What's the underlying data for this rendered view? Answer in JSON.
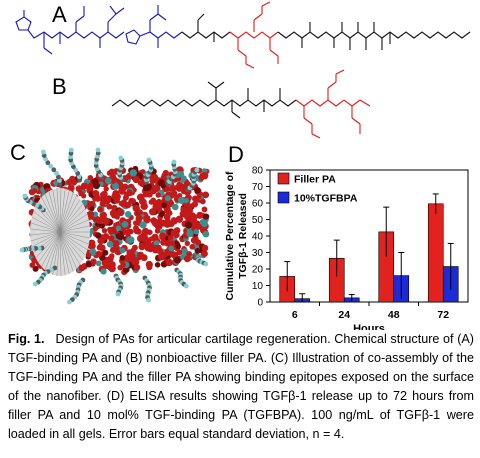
{
  "panel_labels": {
    "a": "A",
    "b": "B",
    "c": "C",
    "d": "D"
  },
  "colors": {
    "blue": "#1515c8",
    "red": "#e31b1b",
    "black": "#111111",
    "filler": "#e2221f",
    "tgfbpa": "#1c2bd6"
  },
  "chart_data": {
    "type": "bar",
    "categories": [
      "6",
      "24",
      "48",
      "72"
    ],
    "series": [
      {
        "name": "Filler PA",
        "color": "#e2221f",
        "values": [
          15.5,
          26.5,
          42.5,
          59.5
        ],
        "errors": [
          9,
          11,
          15,
          6
        ]
      },
      {
        "name": "10%TGFBPA",
        "color": "#1c2bd6",
        "values": [
          2,
          2.5,
          16,
          21.5
        ],
        "errors": [
          3,
          2,
          14,
          14
        ]
      }
    ],
    "xlabel": "Hours",
    "ylabel_line1": "Cumulative Percentage of",
    "ylabel_line2": "TGFβ-1 Released",
    "ylim": [
      0,
      80
    ],
    "yticks": [
      "0",
      "10",
      "20",
      "30",
      "40",
      "50",
      "60",
      "70",
      "80"
    ],
    "legend_position": "top-left"
  },
  "caption": {
    "fig_label": "Fig. 1.",
    "text": "Design of PAs for articular cartilage regeneration. Chemical structure of (A) TGF-binding PA and (B) nonbioactive filler PA. (C) Illustration of co-assembly of the TGF-binding PA and the filler PA showing binding epitopes exposed on the surface of the nanofiber. (D) ELISA results showing TGFβ-1 release up to 72 hours from filler PA and 10 mol% TGF-binding PA (TGFBPA). 100 ng/mL of TGFβ-1 were loaded in all gels. Error bars equal standard deviation, n = 4."
  }
}
